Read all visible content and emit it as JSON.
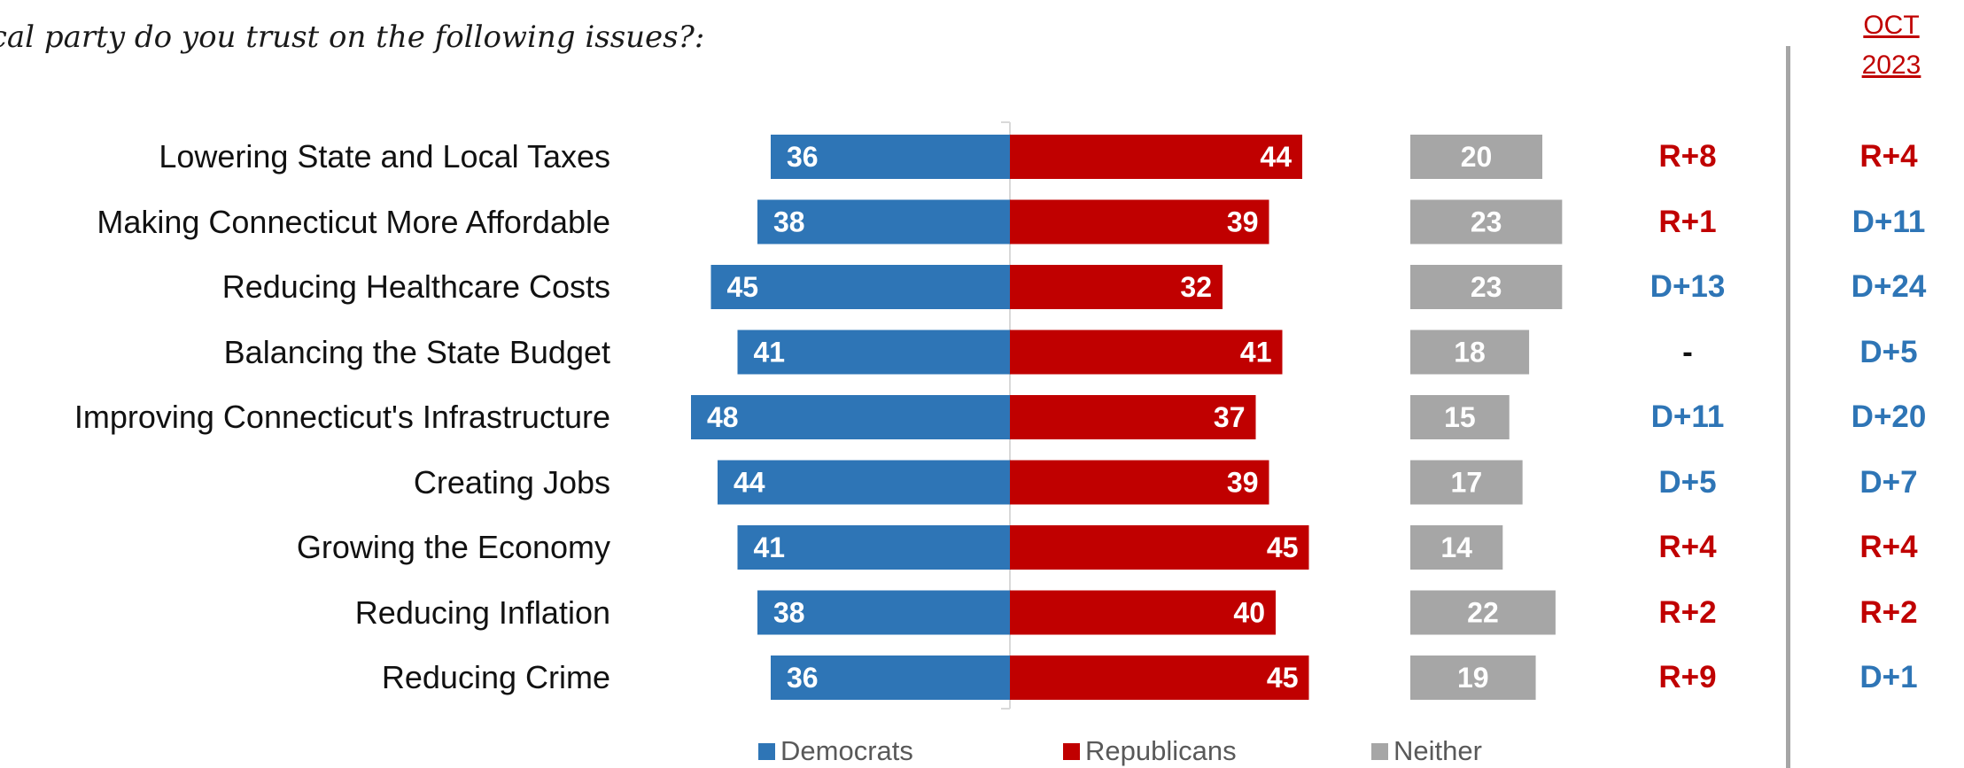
{
  "question": "ical party do you trust on the following issues?:",
  "oct_header": [
    "OCT",
    "2023"
  ],
  "colors": {
    "dem": "#2e75b6",
    "rep": "#c00000",
    "neither": "#a6a6a6",
    "dem_text": "#2e75b6",
    "rep_text": "#c00000"
  },
  "legend": [
    {
      "label": "Democrats",
      "color": "#2e75b6"
    },
    {
      "label": "Republicans",
      "color": "#c00000"
    },
    {
      "label": "Neither",
      "color": "#a6a6a6"
    }
  ],
  "chart_data": {
    "type": "bar",
    "categories": [
      "Lowering State and Local Taxes",
      "Making Connecticut More Affordable",
      "Reducing Healthcare Costs",
      "Balancing the State Budget",
      "Improving Connecticut's Infrastructure",
      "Creating Jobs",
      "Growing the Economy",
      "Reducing Inflation",
      "Reducing Crime"
    ],
    "series": [
      {
        "name": "Democrats",
        "values": [
          36,
          38,
          45,
          41,
          48,
          44,
          41,
          38,
          36
        ]
      },
      {
        "name": "Republicans",
        "values": [
          44,
          39,
          32,
          41,
          37,
          39,
          45,
          40,
          45
        ]
      },
      {
        "name": "Neither",
        "values": [
          20,
          23,
          23,
          18,
          15,
          17,
          14,
          22,
          19
        ]
      }
    ],
    "margin": [
      "R+8",
      "R+1",
      "D+13",
      "-",
      "D+11",
      "D+5",
      "R+4",
      "R+2",
      "R+9"
    ],
    "oct_2023": [
      "R+4",
      "D+11",
      "D+24",
      "D+5",
      "D+20",
      "D+7",
      "R+4",
      "R+2",
      "D+1"
    ]
  }
}
